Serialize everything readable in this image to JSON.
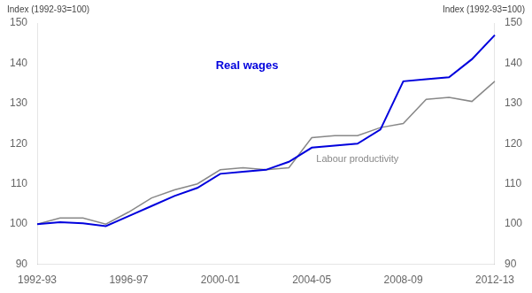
{
  "chart_data": {
    "type": "line",
    "ylabel": "Index (1992-93=100)",
    "y2label": "Index (1992-93=100)",
    "categories": [
      "1992-93",
      null,
      null,
      null,
      "1996-97",
      null,
      null,
      null,
      "2000-01",
      null,
      null,
      null,
      "2004-05",
      null,
      null,
      null,
      "2008-09",
      null,
      null,
      null,
      "2012-13"
    ],
    "series": [
      {
        "name": "Real wages",
        "color": "#0000dd",
        "values": [
          100.0,
          100.5,
          100.2,
          99.5,
          102.0,
          104.5,
          107.0,
          109.0,
          112.5,
          113.0,
          113.5,
          115.5,
          119.0,
          119.5,
          120.0,
          123.5,
          135.5,
          136.0,
          136.5,
          141.0,
          147.0
        ]
      },
      {
        "name": "Labour productivity",
        "color": "#888888",
        "values": [
          100.0,
          101.5,
          101.5,
          100.0,
          103.0,
          106.5,
          108.5,
          110.0,
          113.5,
          114.0,
          113.5,
          114.0,
          121.5,
          122.0,
          122.0,
          124.0,
          125.0,
          131.0,
          131.5,
          130.5,
          135.5
        ]
      }
    ],
    "ylim": [
      90,
      150
    ],
    "yticks": [
      90,
      100,
      110,
      120,
      130,
      140,
      150
    ],
    "y2lim": [
      90,
      150
    ],
    "y2ticks": [
      90,
      100,
      110,
      120,
      130,
      140,
      150
    ],
    "grid": false
  }
}
